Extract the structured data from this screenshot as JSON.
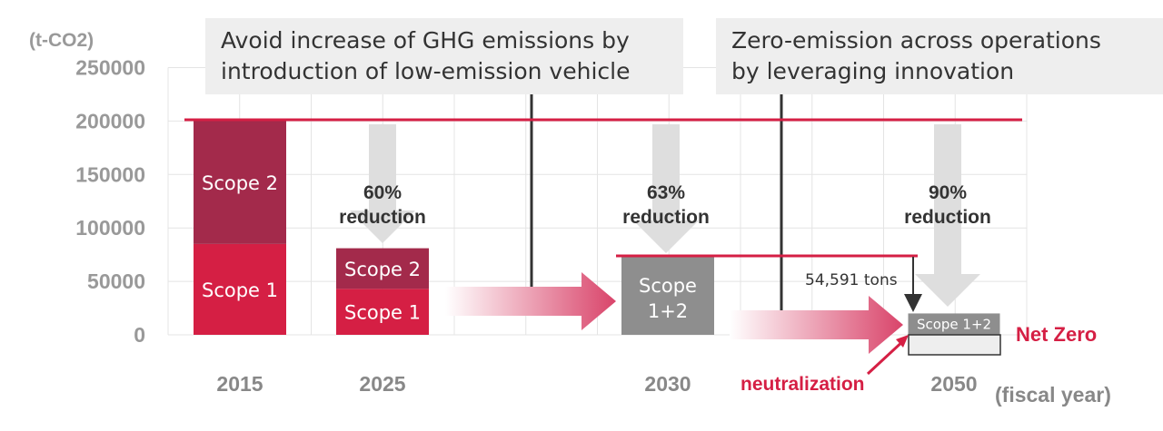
{
  "chart_data": {
    "type": "bar",
    "unit_label": "(t-CO2)",
    "xlabel_unit": "(fiscal year)",
    "ylim": [
      0,
      250000
    ],
    "yticks": [
      "250000",
      "200000",
      "150000",
      "100000",
      "50000",
      "0"
    ],
    "categories": [
      "2015",
      "2025",
      "2030",
      "2050"
    ],
    "series": [
      {
        "name": "Scope 1",
        "values": [
          85000,
          43000,
          null,
          null
        ]
      },
      {
        "name": "Scope 2",
        "values": [
          115000,
          38000,
          null,
          null
        ]
      },
      {
        "name": "Scope 1+2",
        "values": [
          null,
          null,
          74000,
          20000
        ]
      }
    ],
    "segment_labels": {
      "scope1": "Scope 1",
      "scope2": "Scope 2",
      "scope12_line1": "Scope",
      "scope12_line2": "1+2",
      "scope12_small": "Scope 1+2"
    },
    "baseline": 200000,
    "target_2030": 74000,
    "reductions": [
      {
        "year": "2025",
        "pct": "60%",
        "word": "reduction"
      },
      {
        "year": "2030",
        "pct": "63%",
        "word": "reduction"
      },
      {
        "year": "2050",
        "pct": "90%",
        "word": "reduction"
      }
    ],
    "callouts": [
      {
        "lines": [
          "Avoid increase of GHG emissions by",
          "introduction of low-emission vehicle"
        ]
      },
      {
        "lines": [
          "Zero-emission across operations",
          "by leveraging innovation"
        ]
      }
    ],
    "annotation_tons": "54,591 tons",
    "net_zero": "Net Zero",
    "neutralization": "neutralization"
  },
  "colors": {
    "scope1": "#d51f44",
    "scope2": "#a32a4b",
    "scope12": "#8e8e8e",
    "accent_line": "#d51f44",
    "grey_arrow": "#dedede",
    "callout_bg": "#eeeeee"
  }
}
